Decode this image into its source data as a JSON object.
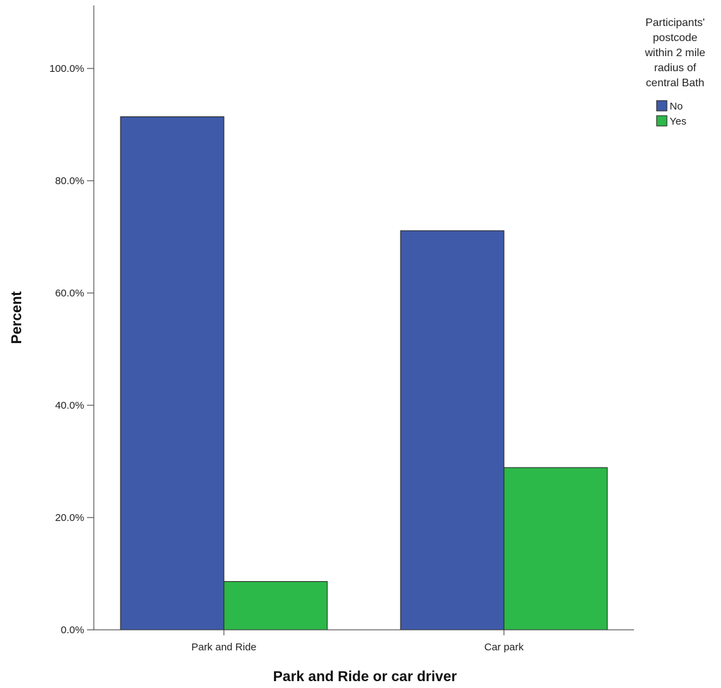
{
  "chart_data": {
    "type": "bar",
    "title": "",
    "xlabel": "Park and Ride or car driver",
    "ylabel": "Percent",
    "categories": [
      "Park and Ride",
      "Car park"
    ],
    "series": [
      {
        "name": "No",
        "values": [
          91.4,
          71.1
        ],
        "color": "#3f5aa8"
      },
      {
        "name": "Yes",
        "values": [
          8.6,
          28.9
        ],
        "color": "#2db84a"
      }
    ],
    "ylim": [
      0,
      100
    ],
    "y_ticks": [
      0,
      20,
      40,
      60,
      80,
      100
    ],
    "y_tick_labels": [
      "0.0%",
      "20.0%",
      "40.0%",
      "60.0%",
      "80.0%",
      "100.0%"
    ],
    "grid": false,
    "legend": {
      "placement": "top-right",
      "title_lines": [
        "Participants'",
        "postcode",
        "within 2 mile",
        "radius of",
        "central Bath"
      ]
    }
  }
}
